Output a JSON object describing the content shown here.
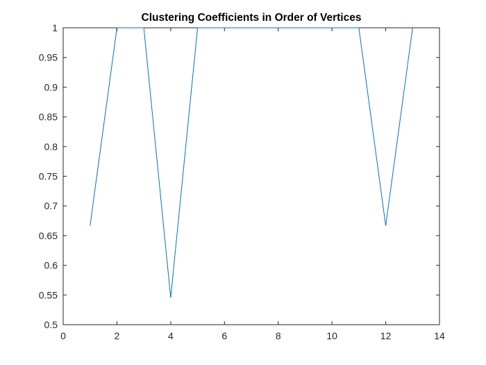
{
  "chart_data": {
    "type": "line",
    "title": "Clustering Coefficients in Order of Vertices",
    "xlabel": "",
    "ylabel": "",
    "xlim": [
      0,
      14
    ],
    "ylim": [
      0.5,
      1
    ],
    "xticks": [
      0,
      2,
      4,
      6,
      8,
      10,
      12,
      14
    ],
    "xtick_labels": [
      "0",
      "2",
      "4",
      "6",
      "8",
      "10",
      "12",
      "14"
    ],
    "yticks": [
      0.5,
      0.55,
      0.6,
      0.65,
      0.7,
      0.75,
      0.8,
      0.85,
      0.9,
      0.95,
      1
    ],
    "ytick_labels": [
      "0.5",
      "0.55",
      "0.6",
      "0.65",
      "0.7",
      "0.75",
      "0.8",
      "0.85",
      "0.9",
      "0.95",
      "1"
    ],
    "grid": false,
    "series": [
      {
        "x": [
          1,
          2,
          3,
          4,
          5,
          6,
          7,
          8,
          9,
          10,
          11,
          12,
          13
        ],
        "values": [
          0.6667,
          1,
          1,
          0.5455,
          1,
          1,
          1,
          1,
          1,
          1,
          1,
          0.6667,
          1
        ],
        "color": "#0072BD"
      }
    ],
    "axis_color": "#262626"
  }
}
